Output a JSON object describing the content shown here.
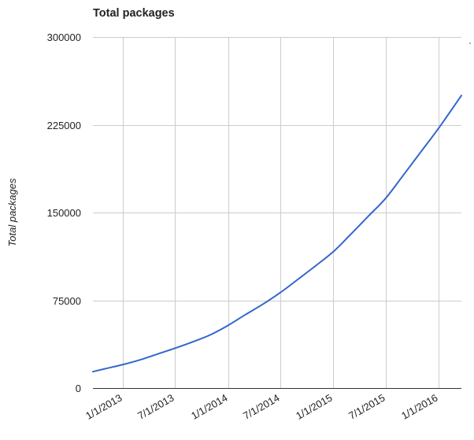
{
  "chart_data": {
    "type": "line",
    "title": "Total packages",
    "ylabel": "Total packages",
    "xlabel": "",
    "ylim": [
      0,
      300000
    ],
    "xlim": [
      "2012-09-20",
      "2016-03-20"
    ],
    "y_ticks": [
      0,
      75000,
      150000,
      225000,
      300000
    ],
    "y_tick_labels": [
      "0",
      "75000",
      "150000",
      "225000",
      "300000"
    ],
    "x_ticks": [
      "2013-01-01",
      "2013-07-01",
      "2014-01-01",
      "2014-07-01",
      "2015-01-01",
      "2015-07-01",
      "2016-01-01"
    ],
    "x_tick_labels": [
      "1/1/2013",
      "7/1/2013",
      "1/1/2014",
      "7/1/2014",
      "1/1/2015",
      "7/1/2015",
      "1/1/2016"
    ],
    "grid": true,
    "legend": "none",
    "colors": {
      "line": "#3366cc",
      "grid": "#cccccc",
      "axis": "#333333",
      "text": "#222222"
    },
    "series": [
      {
        "x": [
          "2012-09-20",
          "2012-11-01",
          "2013-01-01",
          "2013-03-01",
          "2013-05-01",
          "2013-07-01",
          "2013-09-01",
          "2013-11-01",
          "2014-01-01",
          "2014-03-01",
          "2014-05-01",
          "2014-07-01",
          "2014-09-01",
          "2014-11-01",
          "2015-01-01",
          "2015-03-01",
          "2015-05-01",
          "2015-07-01",
          "2015-09-01",
          "2015-11-01",
          "2016-01-01",
          "2016-03-20"
        ],
        "values": [
          14000,
          16500,
          20000,
          24000,
          29000,
          34000,
          39500,
          45500,
          53500,
          62500,
          71500,
          81500,
          93000,
          104500,
          116500,
          131000,
          146500,
          162000,
          182000,
          202000,
          222000,
          250000
        ]
      }
    ]
  }
}
